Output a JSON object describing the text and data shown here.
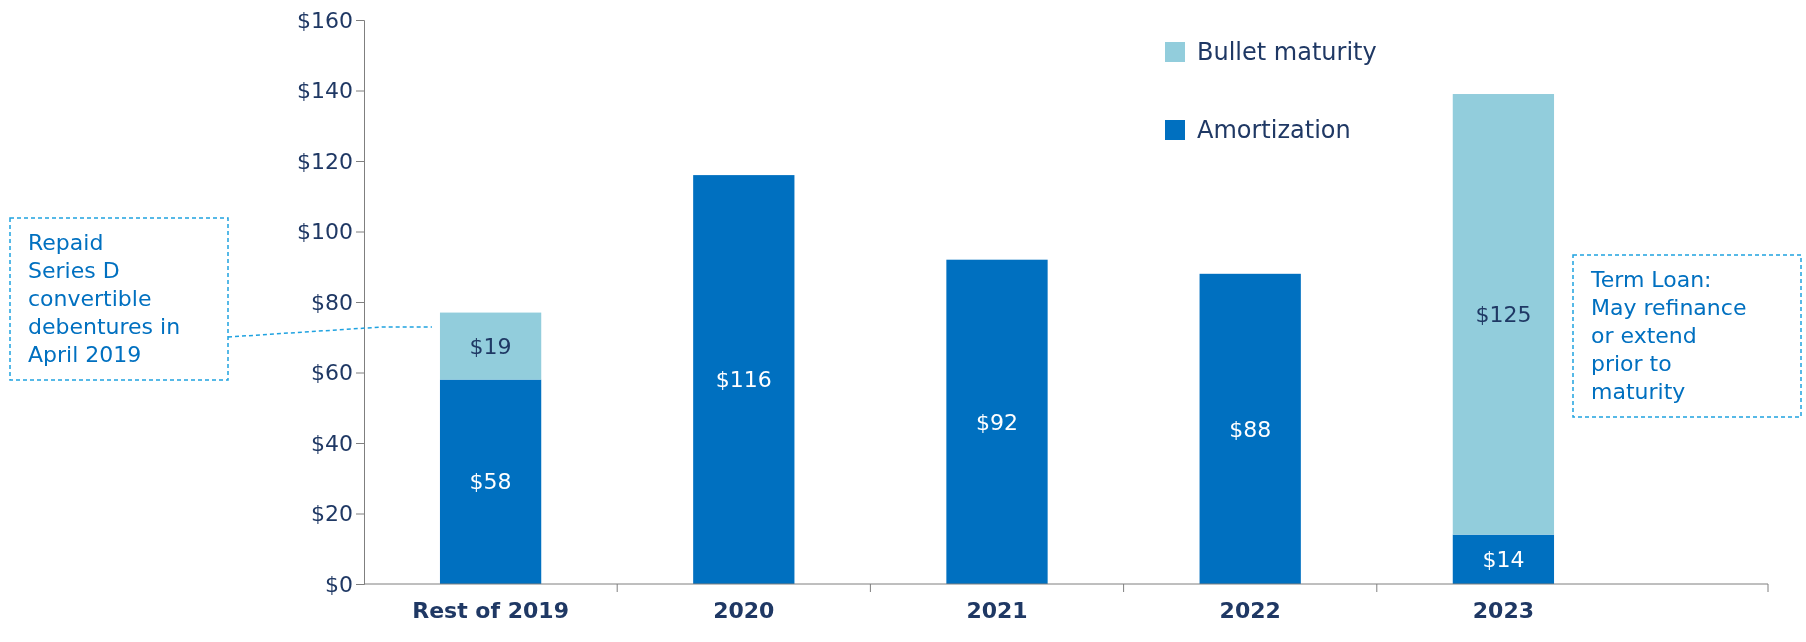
{
  "chart_data": {
    "type": "bar",
    "stacked": true,
    "categories": [
      "Rest of 2019",
      "2020",
      "2021",
      "2022",
      "2023"
    ],
    "series": [
      {
        "name": "Amortization",
        "color": "#0070c0",
        "values": [
          58,
          116,
          92,
          88,
          14
        ],
        "value_labels": [
          "$58",
          "$116",
          "$92",
          "$88",
          "$14"
        ]
      },
      {
        "name": "Bullet maturity",
        "color": "#92cddc",
        "values": [
          19,
          null,
          null,
          null,
          125
        ],
        "value_labels": [
          "$19",
          null,
          null,
          null,
          "$125"
        ]
      }
    ],
    "ylim": [
      0,
      160
    ],
    "yticks": [
      {
        "value": 0,
        "label": "$0"
      },
      {
        "value": 20,
        "label": "$20"
      },
      {
        "value": 40,
        "label": "$40"
      },
      {
        "value": 60,
        "label": "$60"
      },
      {
        "value": 80,
        "label": "$80"
      },
      {
        "value": 100,
        "label": "$100"
      },
      {
        "value": 120,
        "label": "$120"
      },
      {
        "value": 140,
        "label": "$140"
      },
      {
        "value": 160,
        "label": "$160"
      }
    ],
    "grid": false,
    "legend": "top right",
    "annotations": [
      "Repaid\nSeries D\nconvertible\ndebentures in\nApril 2019",
      "Term Loan:\nMay refinance\nor extend\nprior to\nmaturity"
    ]
  }
}
